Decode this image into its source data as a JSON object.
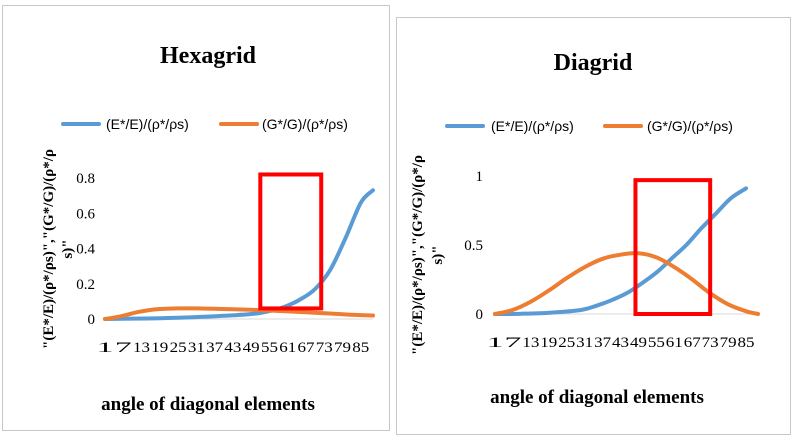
{
  "chart_data": [
    {
      "type": "line",
      "title": "Hexagrid",
      "xlabel": "angle of diagonal elements",
      "ylabel_lines": [
        "\"(E*/E)/(ρ*/ρs)\",\"(G*/G)/(ρ*/ρ",
        "s)\""
      ],
      "ylim": [
        0,
        0.8
      ],
      "yticks": [
        "0",
        "0.2",
        "0.4",
        "0.6",
        "0.8"
      ],
      "x_range": [
        1,
        89
      ],
      "xticks": [
        "1",
        "7",
        "13",
        "19",
        "25",
        "31",
        "37",
        "43",
        "49",
        "55",
        "61",
        "67",
        "73",
        "79",
        "85"
      ],
      "legend_position": "top",
      "series": [
        {
          "name": "(E*/E)/(ρ*/ρs)",
          "color": "#5b9bd5",
          "x": [
            1,
            10,
            20,
            30,
            40,
            50,
            55,
            60,
            65,
            70,
            75,
            80,
            85,
            89
          ],
          "y": [
            0.0,
            0.002,
            0.005,
            0.01,
            0.018,
            0.03,
            0.045,
            0.07,
            0.11,
            0.17,
            0.28,
            0.46,
            0.66,
            0.73
          ]
        },
        {
          "name": "(G*/G)/(ρ*/ρs)",
          "color": "#ed7d31",
          "x": [
            1,
            6,
            12,
            18,
            25,
            31,
            37,
            43,
            49,
            55,
            61,
            67,
            73,
            79,
            85,
            89
          ],
          "y": [
            0.0,
            0.015,
            0.04,
            0.055,
            0.06,
            0.06,
            0.058,
            0.055,
            0.052,
            0.048,
            0.043,
            0.038,
            0.033,
            0.027,
            0.022,
            0.02
          ]
        }
      ],
      "highlight": {
        "x_range": [
          52,
          72
        ],
        "y_range": [
          0.06,
          0.82
        ],
        "color": "#ff0000"
      }
    },
    {
      "type": "line",
      "title": "Diagrid",
      "xlabel": "angle of diagonal elements",
      "ylabel_lines": [
        "\"(E*/E)/(ρ*/ρs)\",\"(G*/G)/(ρ*/ρ",
        "s)\""
      ],
      "ylim": [
        0,
        1
      ],
      "yticks": [
        "0",
        "0.5",
        "1"
      ],
      "x_range": [
        1,
        89
      ],
      "xticks": [
        "1",
        "7",
        "13",
        "19",
        "25",
        "31",
        "37",
        "43",
        "49",
        "55",
        "61",
        "67",
        "73",
        "79",
        "85"
      ],
      "legend_position": "top",
      "series": [
        {
          "name": "(E*/E)/(ρ*/ρs)",
          "color": "#5b9bd5",
          "x": [
            1,
            10,
            20,
            30,
            35,
            40,
            45,
            50,
            55,
            60,
            65,
            70,
            75,
            80,
            85
          ],
          "y": [
            0.0,
            0.002,
            0.01,
            0.03,
            0.06,
            0.1,
            0.15,
            0.22,
            0.3,
            0.4,
            0.5,
            0.62,
            0.73,
            0.84,
            0.91
          ]
        },
        {
          "name": "(G*/G)/(ρ*/ρs)",
          "color": "#ed7d31",
          "x": [
            1,
            7,
            13,
            19,
            25,
            31,
            37,
            43,
            49,
            55,
            61,
            67,
            73,
            79,
            85,
            89
          ],
          "y": [
            0.0,
            0.03,
            0.09,
            0.17,
            0.26,
            0.34,
            0.4,
            0.43,
            0.44,
            0.41,
            0.34,
            0.25,
            0.15,
            0.07,
            0.02,
            0.0
          ]
        }
      ],
      "highlight": {
        "x_range": [
          48,
          73
        ],
        "y_range": [
          0.0,
          0.97
        ],
        "color": "#ff0000"
      }
    }
  ]
}
